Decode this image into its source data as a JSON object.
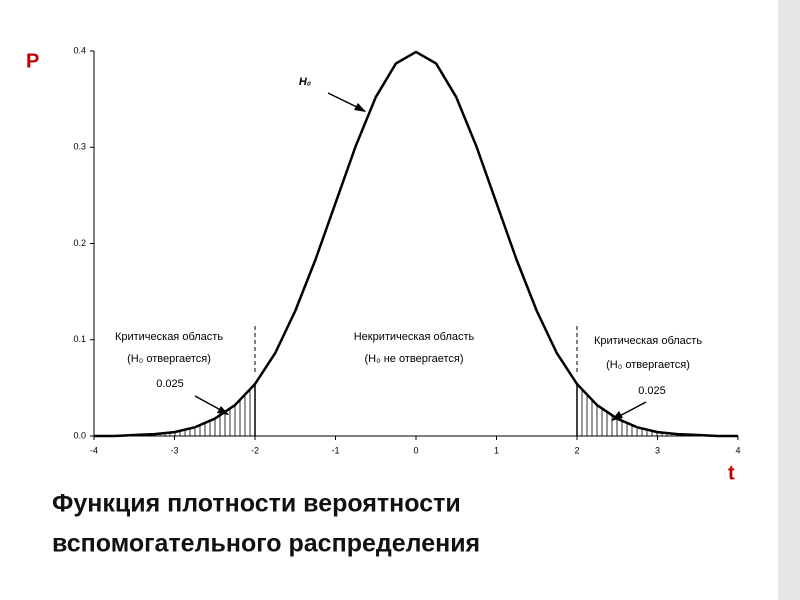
{
  "chart_data": {
    "type": "line",
    "x_label": "t",
    "y_label": "P",
    "x": [
      -4,
      -3.75,
      -3.5,
      -3.25,
      -3,
      -2.75,
      -2.5,
      -2.25,
      -2,
      -1.75,
      -1.5,
      -1.25,
      -1,
      -0.75,
      -0.5,
      -0.25,
      0,
      0.25,
      0.5,
      0.75,
      1,
      1.25,
      1.5,
      1.75,
      2,
      2.25,
      2.5,
      2.75,
      3,
      3.25,
      3.5,
      3.75,
      4
    ],
    "series": [
      {
        "name": "H₀",
        "color": "#000000",
        "values": [
          0.0,
          0.0,
          0.001,
          0.002,
          0.004,
          0.009,
          0.018,
          0.032,
          0.054,
          0.086,
          0.13,
          0.183,
          0.242,
          0.301,
          0.352,
          0.387,
          0.399,
          0.387,
          0.352,
          0.301,
          0.242,
          0.183,
          0.13,
          0.086,
          0.054,
          0.032,
          0.018,
          0.009,
          0.004,
          0.002,
          0.001,
          0.0,
          0.0
        ]
      }
    ],
    "xlim": [
      -4,
      4
    ],
    "xticks": [
      -4,
      -3,
      -2,
      -1,
      0,
      1,
      2,
      3,
      4
    ],
    "ylim": [
      0,
      0.4
    ],
    "yticks": [
      {
        "value": 0,
        "label": "0.0"
      },
      0.1,
      0.2,
      0.3,
      0.4
    ],
    "critical_t": [
      -2,
      2
    ],
    "annotations": [
      "H₀",
      "Критическая область",
      "(H₀ отвергается)",
      "0.025",
      "Некритическая область",
      "(H₀ не отвергается)",
      "Критическая область",
      "(H₀ отвергается)",
      "0.025"
    ],
    "caption": [
      "Функция плотности вероятности",
      "вспомогательного распределения"
    ]
  }
}
